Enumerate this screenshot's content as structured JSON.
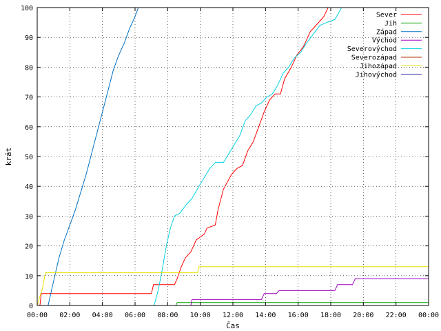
{
  "chart_data": {
    "type": "line",
    "xlabel": "Čas",
    "ylabel": "krát",
    "xlim": [
      "00:00",
      "24:00"
    ],
    "ylim": [
      0,
      100
    ],
    "grid": true,
    "legend_position": "top-right",
    "x_ticks": [
      "00:00",
      "02:00",
      "04:00",
      "06:00",
      "08:00",
      "10:00",
      "12:00",
      "14:00",
      "16:00",
      "18:00",
      "20:00",
      "22:00",
      "00:00"
    ],
    "y_ticks": [
      0,
      10,
      20,
      30,
      40,
      50,
      60,
      70,
      80,
      90,
      100
    ],
    "series": [
      {
        "name": "Sever",
        "color": "#ff0000",
        "points": [
          [
            "00:10",
            0
          ],
          [
            "00:15",
            4
          ],
          [
            "07:00",
            4
          ],
          [
            "07:08",
            7
          ],
          [
            "08:25",
            7
          ],
          [
            "08:35",
            9
          ],
          [
            "08:50",
            13
          ],
          [
            "09:05",
            16
          ],
          [
            "09:25",
            18
          ],
          [
            "09:45",
            22
          ],
          [
            "10:15",
            24
          ],
          [
            "10:25",
            26
          ],
          [
            "10:55",
            27
          ],
          [
            "11:05",
            32
          ],
          [
            "11:25",
            39
          ],
          [
            "11:55",
            44
          ],
          [
            "12:15",
            46
          ],
          [
            "12:35",
            47
          ],
          [
            "12:55",
            52
          ],
          [
            "13:15",
            55
          ],
          [
            "13:35",
            60
          ],
          [
            "13:55",
            65
          ],
          [
            "14:15",
            69
          ],
          [
            "14:35",
            71
          ],
          [
            "14:55",
            71
          ],
          [
            "15:10",
            76
          ],
          [
            "15:35",
            80
          ],
          [
            "15:55",
            84
          ],
          [
            "16:20",
            87
          ],
          [
            "16:45",
            92
          ],
          [
            "17:15",
            95
          ],
          [
            "17:35",
            97
          ],
          [
            "17:50",
            100
          ]
        ]
      },
      {
        "name": "Jih",
        "color": "#00a000",
        "points": [
          [
            "08:30",
            0
          ],
          [
            "08:35",
            1
          ],
          [
            "24:00",
            1
          ]
        ]
      },
      {
        "name": "Západ",
        "color": "#0070c0",
        "points": [
          [
            "00:00",
            0
          ],
          [
            "00:40",
            0
          ],
          [
            "00:50",
            4
          ],
          [
            "01:05",
            10
          ],
          [
            "01:20",
            16
          ],
          [
            "01:40",
            22
          ],
          [
            "02:00",
            27
          ],
          [
            "02:20",
            32
          ],
          [
            "02:40",
            38
          ],
          [
            "03:00",
            44
          ],
          [
            "03:20",
            51
          ],
          [
            "03:40",
            58
          ],
          [
            "04:00",
            65
          ],
          [
            "04:20",
            72
          ],
          [
            "04:40",
            79
          ],
          [
            "05:00",
            84
          ],
          [
            "05:20",
            88
          ],
          [
            "05:40",
            93
          ],
          [
            "06:00",
            97
          ],
          [
            "06:12",
            100
          ]
        ]
      },
      {
        "name": "Východ",
        "color": "#a000c0",
        "points": [
          [
            "09:25",
            0
          ],
          [
            "09:30",
            2
          ],
          [
            "13:45",
            2
          ],
          [
            "13:55",
            4
          ],
          [
            "14:40",
            4
          ],
          [
            "14:50",
            5
          ],
          [
            "18:15",
            5
          ],
          [
            "18:25",
            7
          ],
          [
            "19:20",
            7
          ],
          [
            "19:30",
            9
          ],
          [
            "24:00",
            9
          ]
        ]
      },
      {
        "name": "Severovýchod",
        "color": "#00d0e0",
        "points": [
          [
            "07:10",
            0
          ],
          [
            "07:25",
            5
          ],
          [
            "07:40",
            12
          ],
          [
            "07:55",
            20
          ],
          [
            "08:10",
            26
          ],
          [
            "08:25",
            30
          ],
          [
            "08:45",
            31
          ],
          [
            "09:10",
            34
          ],
          [
            "09:30",
            36
          ],
          [
            "09:55",
            40
          ],
          [
            "10:15",
            43
          ],
          [
            "10:35",
            46
          ],
          [
            "10:55",
            48
          ],
          [
            "11:25",
            48
          ],
          [
            "11:45",
            51
          ],
          [
            "12:05",
            54
          ],
          [
            "12:25",
            57
          ],
          [
            "12:45",
            62
          ],
          [
            "13:05",
            64
          ],
          [
            "13:25",
            67
          ],
          [
            "13:45",
            68
          ],
          [
            "14:05",
            70
          ],
          [
            "14:25",
            71
          ],
          [
            "14:45",
            74
          ],
          [
            "15:05",
            78
          ],
          [
            "15:25",
            80
          ],
          [
            "15:45",
            83
          ],
          [
            "16:10",
            85
          ],
          [
            "16:30",
            88
          ],
          [
            "16:55",
            91
          ],
          [
            "17:20",
            94
          ],
          [
            "17:45",
            95
          ],
          [
            "18:15",
            96
          ],
          [
            "18:40",
            100
          ]
        ]
      },
      {
        "name": "Severozápad",
        "color": "#b03000",
        "points": []
      },
      {
        "name": "Jihozápad",
        "color": "#e8e000",
        "points": [
          [
            "00:00",
            0
          ],
          [
            "00:20",
            6
          ],
          [
            "00:30",
            11
          ],
          [
            "09:50",
            11
          ],
          [
            "09:55",
            13
          ],
          [
            "24:00",
            13
          ]
        ]
      },
      {
        "name": "Jihovýchod",
        "color": "#2020a0",
        "points": []
      }
    ]
  }
}
